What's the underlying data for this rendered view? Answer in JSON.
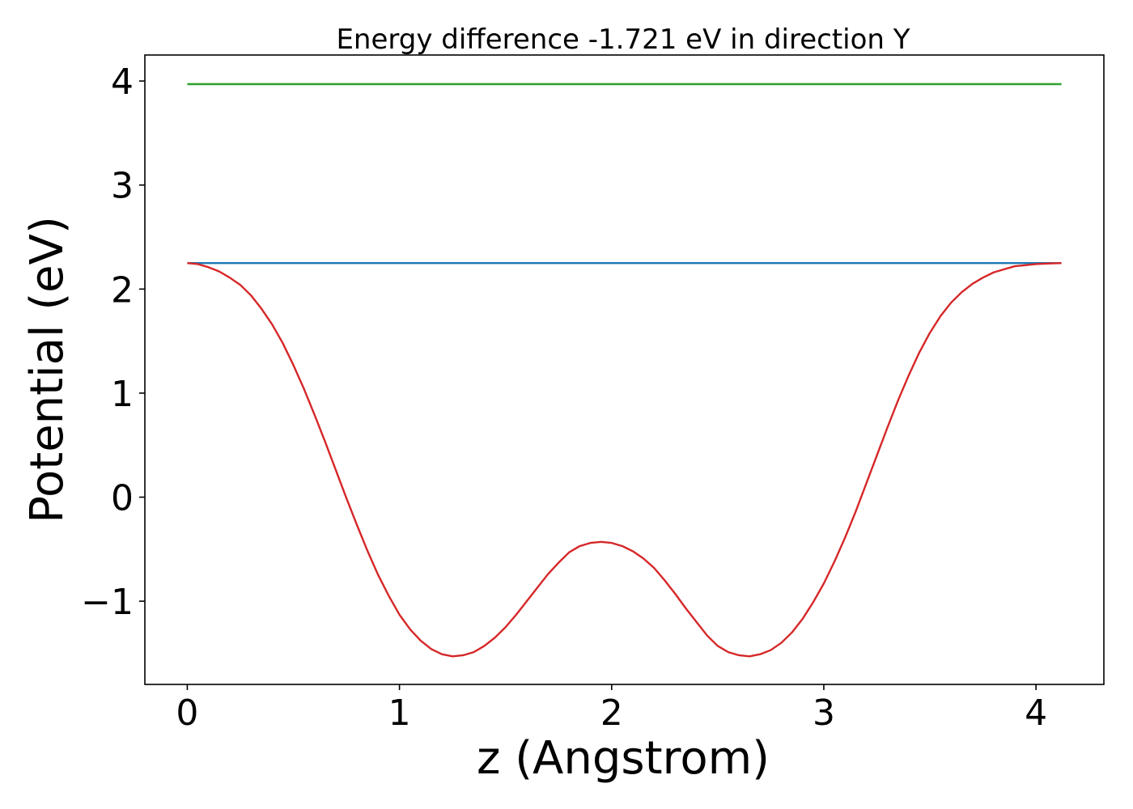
{
  "chart_data": {
    "type": "line",
    "title": "Energy difference -1.721 eV in direction Y",
    "xlabel": "z (Angstrom)",
    "ylabel": "Potential (eV)",
    "xlim": [
      -0.2,
      4.32
    ],
    "ylim": [
      -1.8,
      4.25
    ],
    "x_ticks": [
      0,
      1,
      2,
      3,
      4
    ],
    "y_ticks": [
      -1,
      0,
      1,
      2,
      3,
      4
    ],
    "x_tick_labels": [
      "0",
      "1",
      "2",
      "3",
      "4"
    ],
    "y_tick_labels": [
      "−1",
      "0",
      "1",
      "2",
      "3",
      "4"
    ],
    "grid": false,
    "series": [
      {
        "color": "#2ca02c",
        "x": [
          0,
          4.12
        ],
        "y": [
          3.97,
          3.97
        ]
      },
      {
        "color": "#1f77b4",
        "x": [
          0,
          4.12
        ],
        "y": [
          2.25,
          2.25
        ]
      },
      {
        "color": "#d62728",
        "x": [
          0,
          0.05,
          0.1,
          0.15,
          0.2,
          0.25,
          0.3,
          0.35,
          0.4,
          0.45,
          0.5,
          0.55,
          0.6,
          0.65,
          0.7,
          0.75,
          0.8,
          0.85,
          0.9,
          0.95,
          1.0,
          1.05,
          1.1,
          1.15,
          1.2,
          1.25,
          1.3,
          1.35,
          1.4,
          1.45,
          1.5,
          1.55,
          1.6,
          1.65,
          1.7,
          1.75,
          1.8,
          1.85,
          1.9,
          1.95,
          2.0,
          2.05,
          2.06,
          2.1,
          2.15,
          2.2,
          2.25,
          2.3,
          2.35,
          2.4,
          2.45,
          2.5,
          2.55,
          2.6,
          2.65,
          2.7,
          2.75,
          2.8,
          2.85,
          2.9,
          2.95,
          3.0,
          3.05,
          3.1,
          3.15,
          3.2,
          3.25,
          3.3,
          3.35,
          3.4,
          3.45,
          3.5,
          3.55,
          3.6,
          3.65,
          3.7,
          3.75,
          3.8,
          3.85,
          3.9,
          3.95,
          4.0,
          4.05,
          4.12
        ],
        "y": [
          2.25,
          2.24,
          2.21,
          2.17,
          2.11,
          2.04,
          1.94,
          1.81,
          1.66,
          1.48,
          1.27,
          1.04,
          0.79,
          0.53,
          0.26,
          -0.01,
          -0.27,
          -0.52,
          -0.75,
          -0.95,
          -1.13,
          -1.27,
          -1.38,
          -1.46,
          -1.51,
          -1.53,
          -1.52,
          -1.49,
          -1.43,
          -1.35,
          -1.25,
          -1.13,
          -1.0,
          -0.87,
          -0.74,
          -0.63,
          -0.53,
          -0.47,
          -0.44,
          -0.43,
          -0.44,
          -0.47,
          -0.48,
          -0.52,
          -0.59,
          -0.68,
          -0.8,
          -0.93,
          -1.07,
          -1.2,
          -1.33,
          -1.43,
          -1.49,
          -1.52,
          -1.53,
          -1.51,
          -1.47,
          -1.4,
          -1.3,
          -1.17,
          -1.01,
          -0.83,
          -0.62,
          -0.39,
          -0.14,
          0.13,
          0.4,
          0.67,
          0.93,
          1.17,
          1.39,
          1.58,
          1.74,
          1.87,
          1.97,
          2.05,
          2.11,
          2.16,
          2.19,
          2.22,
          2.23,
          2.24,
          2.245,
          2.25
        ]
      }
    ]
  }
}
